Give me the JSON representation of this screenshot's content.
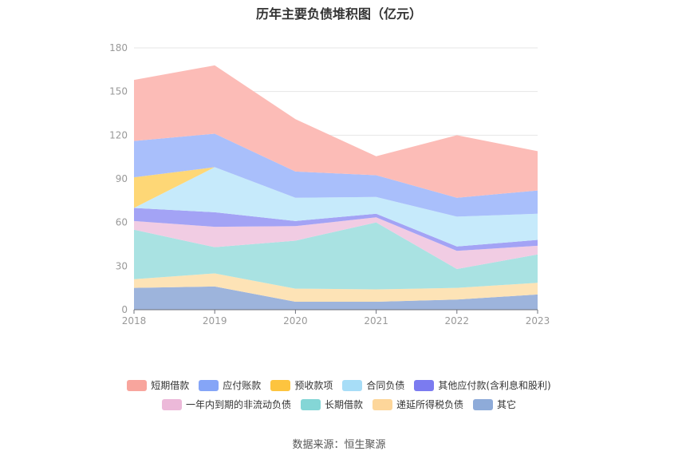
{
  "chart_data": {
    "type": "area",
    "stacked": true,
    "title": "历年主要负债堆积图（亿元）",
    "x": [
      "2018",
      "2019",
      "2020",
      "2021",
      "2022",
      "2023"
    ],
    "yticks": [
      "0",
      "30",
      "60",
      "90",
      "120",
      "150",
      "180"
    ],
    "ylim": [
      0,
      180
    ],
    "grid": true,
    "legend_position": "bottom",
    "series": [
      {
        "name": "其它",
        "color": "#9db4dc",
        "values": [
          15,
          16,
          5.5,
          5.5,
          7,
          10.5
        ]
      },
      {
        "name": "递延所得税负债",
        "color": "#fde3b6",
        "values": [
          6,
          9,
          9,
          8.5,
          8,
          8
        ]
      },
      {
        "name": "长期借款",
        "color": "#a9e2e2",
        "values": [
          34,
          18,
          33,
          46,
          13,
          19.5
        ]
      },
      {
        "name": "一年内到期的非流动负债",
        "color": "#f1cce3",
        "values": [
          6,
          14,
          10,
          3.5,
          12.5,
          6
        ]
      },
      {
        "name": "其他应付款(含利息和股利)",
        "color": "#a3a3f5",
        "values": [
          9,
          10,
          3.5,
          2.5,
          3,
          4
        ]
      },
      {
        "name": "合同负债",
        "color": "#c6eafb",
        "values": [
          0,
          31,
          16,
          11.5,
          20.5,
          18
        ]
      },
      {
        "name": "预收款项",
        "color": "#fed776",
        "values": [
          21,
          0,
          0,
          0,
          0,
          0
        ]
      },
      {
        "name": "应付账款",
        "color": "#a9bffb",
        "values": [
          25,
          23,
          18,
          15,
          13,
          16
        ]
      },
      {
        "name": "短期借款",
        "color": "#fcbcb7",
        "values": [
          42,
          47,
          36,
          13,
          43,
          27
        ]
      }
    ]
  },
  "legend": {
    "row1": [
      {
        "name": "短期借款",
        "color": "#f8a59d"
      },
      {
        "name": "应付账款",
        "color": "#85a5f7"
      },
      {
        "name": "预收款项",
        "color": "#fdc43f"
      },
      {
        "name": "合同负债",
        "color": "#a7ddf7"
      },
      {
        "name": "其他应付款(含利息和股利)",
        "color": "#7b7bf0"
      }
    ],
    "row2": [
      {
        "name": "一年内到期的非流动负债",
        "color": "#ecb9d9"
      },
      {
        "name": "长期借款",
        "color": "#84d6d6"
      },
      {
        "name": "递延所得税负债",
        "color": "#fdd69a"
      },
      {
        "name": "其它",
        "color": "#8eabd9"
      }
    ]
  },
  "source": "数据来源：恒生聚源"
}
